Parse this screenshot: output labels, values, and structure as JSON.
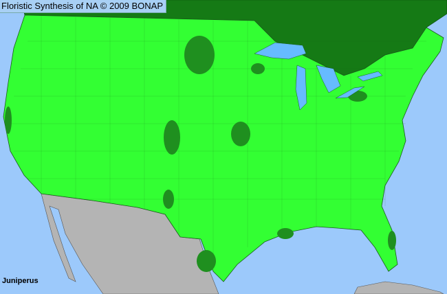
{
  "title": "Floristic Synthesis of NA © 2009 BONAP",
  "taxon_label": "Juniperus",
  "colors": {
    "water": "#9cc9fb",
    "present": "#33ff33",
    "native_dense": "#1f8f1f",
    "canada": "#157a15",
    "mexico": "#b4b4b4",
    "lakes": "#66bbff"
  }
}
